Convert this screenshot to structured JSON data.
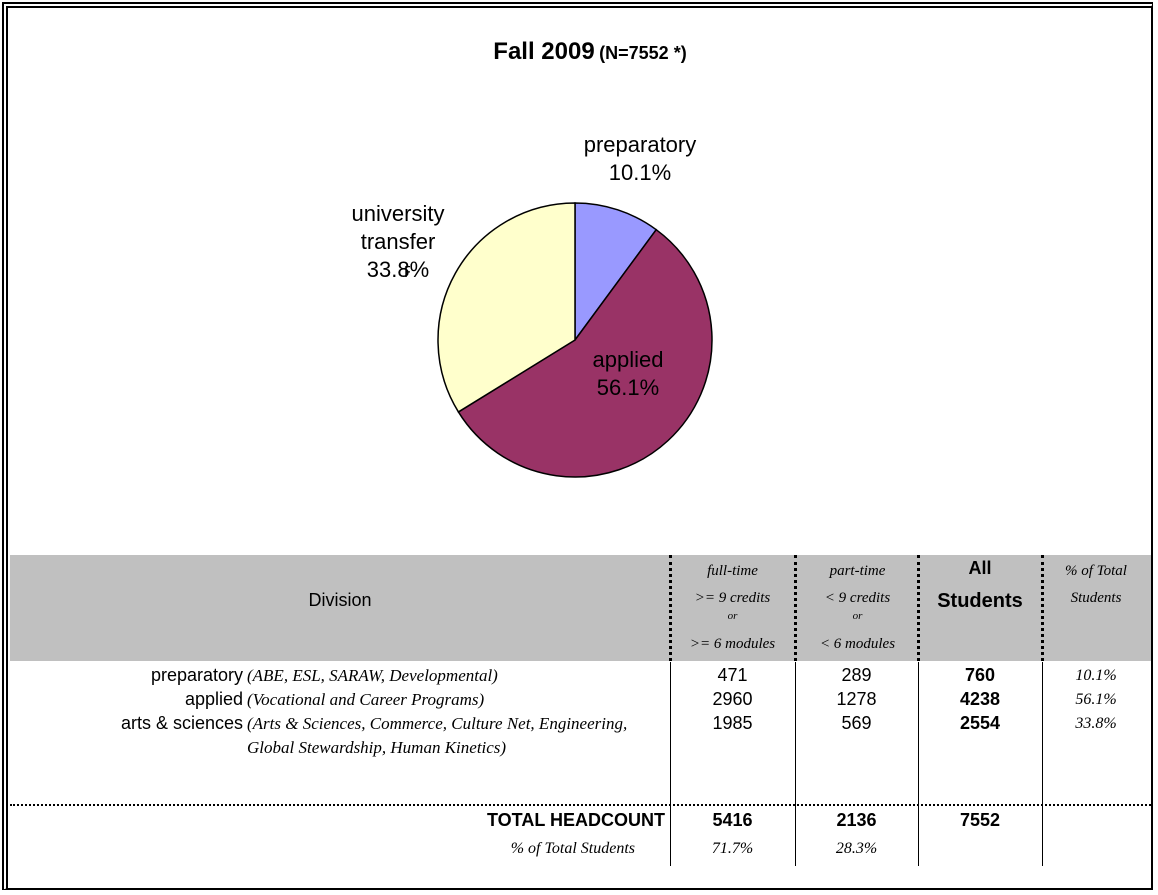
{
  "chart_data": {
    "type": "pie",
    "title": "Fall 2009",
    "subtitle": "(N=7552 *)",
    "categories": [
      "preparatory",
      "applied",
      "university transfer"
    ],
    "values": [
      10.1,
      56.1,
      33.8
    ],
    "value_labels": [
      "10.1%",
      "56.1%",
      "33.8%"
    ],
    "colors": [
      "#9999ff",
      "#993366",
      "#ffffcc"
    ]
  },
  "fragment": "F",
  "table": {
    "header": {
      "division": "Division",
      "full_time": [
        ">= 9 credits",
        "or",
        ">= 6 modules"
      ],
      "full_time_title": "full-time",
      "part_time_title": "part-time",
      "part_time": [
        "< 9 credits",
        "or",
        "< 6 modules"
      ],
      "all_students": [
        "All",
        "Students"
      ],
      "percent": [
        "% of Total",
        "Students"
      ]
    },
    "rows": [
      {
        "division": "preparatory",
        "description": "(ABE, ESL, SARAW, Developmental)",
        "full_time": 471,
        "part_time": 289,
        "all": 760,
        "percent": "10.1%"
      },
      {
        "division": "applied",
        "description": "(Vocational and Career Programs)",
        "full_time": 2960,
        "part_time": 1278,
        "all": 4238,
        "percent": "56.1%"
      },
      {
        "division": "arts & sciences",
        "description": "(Arts & Sciences, Commerce, Culture Net, Engineering, Global Stewardship, Human Kinetics)",
        "full_time": 1985,
        "part_time": 569,
        "all": 2554,
        "percent": "33.8%"
      }
    ],
    "total": {
      "label": "TOTAL HEADCOUNT",
      "full_time": 5416,
      "part_time": 2136,
      "all": 7552
    },
    "percent_row": {
      "label": "% of Total Students",
      "full_time": "71.7%",
      "part_time": "28.3%"
    }
  }
}
